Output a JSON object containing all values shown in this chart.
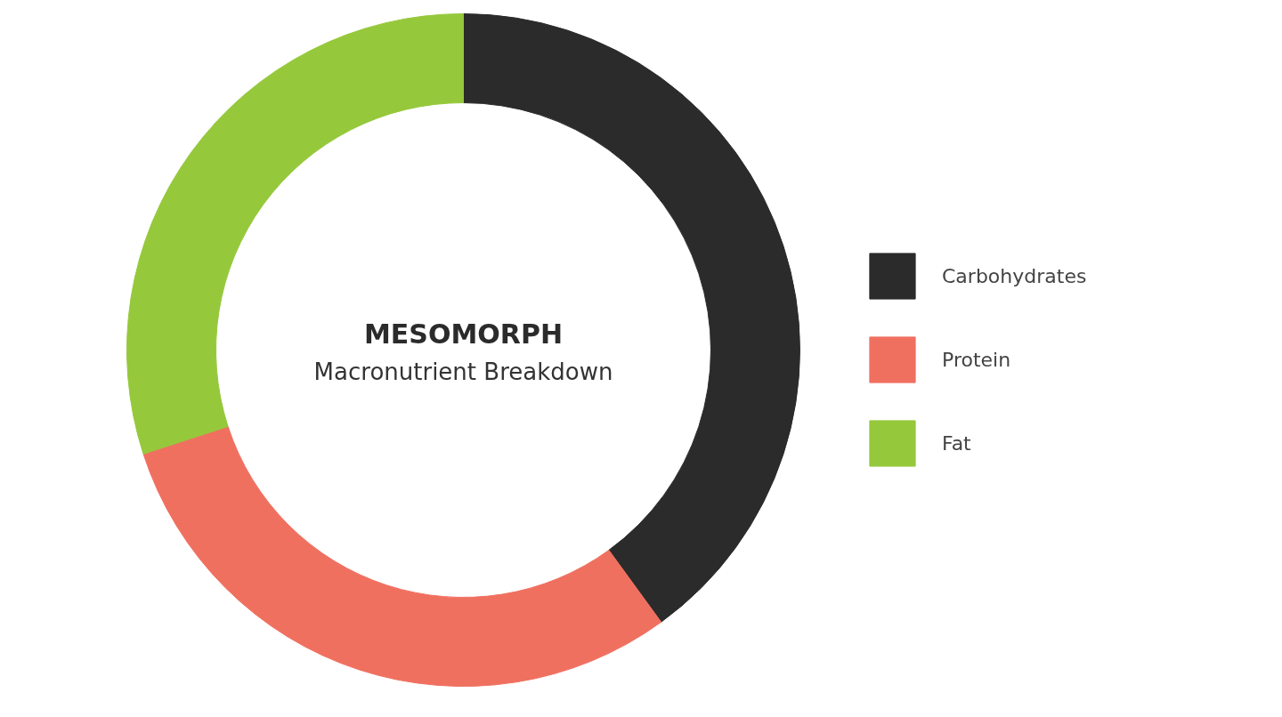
{
  "chart_data": {
    "type": "donut",
    "title": "MESOMORPH",
    "subtitle": "Macronutrient Breakdown",
    "categories": [
      "Carbohydrates",
      "Protein",
      "Fat"
    ],
    "values": [
      40,
      30,
      30
    ],
    "colors": [
      "#2b2b2b",
      "#f07060",
      "#96c83c"
    ],
    "legend": "right"
  }
}
